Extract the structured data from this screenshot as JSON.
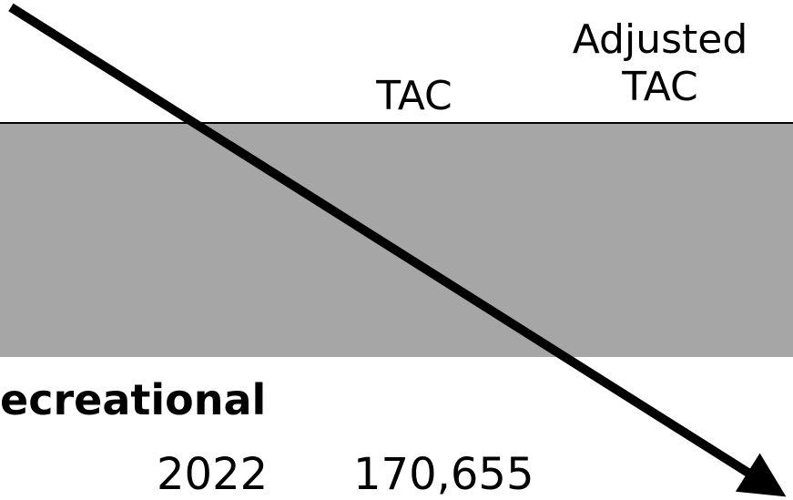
{
  "table": {
    "header": {
      "tac": "TAC",
      "adjusted_tac_line1": "Adjusted",
      "adjusted_tac_line2": "TAC"
    },
    "section_label": "ecreational",
    "rows": [
      {
        "year": "2022",
        "tac": "170,655",
        "adjusted_tac": ""
      }
    ]
  },
  "colors": {
    "band": "#a6a6a6",
    "arrow": "#000000",
    "text": "#000000"
  }
}
